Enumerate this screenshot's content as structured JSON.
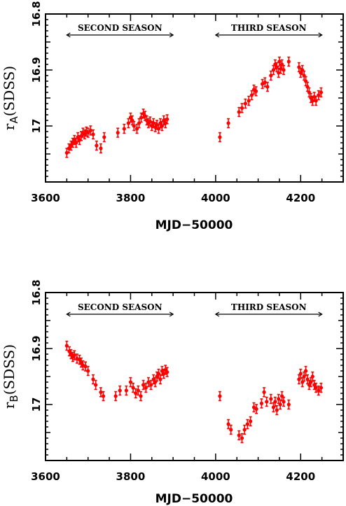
{
  "chart_data": [
    {
      "type": "scatter",
      "ylabel_main": "r",
      "ylabel_sub": "A",
      "ylabel_rest": "(SDSS)",
      "xlabel": "MJD−50000",
      "xlim": [
        3600,
        4300
      ],
      "ylim": [
        17.1,
        16.8
      ],
      "xticks": [
        "3600",
        "3800",
        "4000",
        "4200"
      ],
      "xtick_values": [
        3600,
        3800,
        4000,
        4200
      ],
      "yticks": [
        "16.8",
        "16.9",
        "17"
      ],
      "ytick_values": [
        16.8,
        16.9,
        17.0
      ],
      "annotations": [
        {
          "text": "SECOND SEASON",
          "x_start": 3650,
          "x_end": 3900
        },
        {
          "text": "THIRD SEASON",
          "x_start": 4000,
          "x_end": 4250
        }
      ],
      "color": "#ff0000",
      "points": [
        {
          "x": 3650,
          "y": 17.048,
          "e": 0.008
        },
        {
          "x": 3655,
          "y": 17.04,
          "e": 0.008
        },
        {
          "x": 3660,
          "y": 17.035,
          "e": 0.008
        },
        {
          "x": 3664,
          "y": 17.03,
          "e": 0.008
        },
        {
          "x": 3668,
          "y": 17.025,
          "e": 0.008
        },
        {
          "x": 3672,
          "y": 17.03,
          "e": 0.008
        },
        {
          "x": 3676,
          "y": 17.02,
          "e": 0.008
        },
        {
          "x": 3680,
          "y": 17.025,
          "e": 0.008
        },
        {
          "x": 3684,
          "y": 17.018,
          "e": 0.008
        },
        {
          "x": 3688,
          "y": 17.012,
          "e": 0.008
        },
        {
          "x": 3692,
          "y": 17.015,
          "e": 0.008
        },
        {
          "x": 3696,
          "y": 17.01,
          "e": 0.008
        },
        {
          "x": 3700,
          "y": 17.012,
          "e": 0.008
        },
        {
          "x": 3706,
          "y": 17.008,
          "e": 0.008
        },
        {
          "x": 3712,
          "y": 17.015,
          "e": 0.008
        },
        {
          "x": 3720,
          "y": 17.035,
          "e": 0.008
        },
        {
          "x": 3730,
          "y": 17.04,
          "e": 0.008
        },
        {
          "x": 3738,
          "y": 17.02,
          "e": 0.008
        },
        {
          "x": 3770,
          "y": 17.012,
          "e": 0.008
        },
        {
          "x": 3785,
          "y": 17.005,
          "e": 0.008
        },
        {
          "x": 3795,
          "y": 16.995,
          "e": 0.008
        },
        {
          "x": 3800,
          "y": 16.985,
          "e": 0.008
        },
        {
          "x": 3804,
          "y": 16.99,
          "e": 0.008
        },
        {
          "x": 3808,
          "y": 17.0,
          "e": 0.008
        },
        {
          "x": 3815,
          "y": 17.005,
          "e": 0.008
        },
        {
          "x": 3820,
          "y": 16.995,
          "e": 0.008
        },
        {
          "x": 3825,
          "y": 16.985,
          "e": 0.008
        },
        {
          "x": 3830,
          "y": 16.978,
          "e": 0.008
        },
        {
          "x": 3834,
          "y": 16.982,
          "e": 0.008
        },
        {
          "x": 3838,
          "y": 16.99,
          "e": 0.008
        },
        {
          "x": 3842,
          "y": 16.995,
          "e": 0.008
        },
        {
          "x": 3846,
          "y": 16.992,
          "e": 0.008
        },
        {
          "x": 3850,
          "y": 17.0,
          "e": 0.008
        },
        {
          "x": 3854,
          "y": 16.995,
          "e": 0.008
        },
        {
          "x": 3858,
          "y": 17.002,
          "e": 0.008
        },
        {
          "x": 3862,
          "y": 16.998,
          "e": 0.008
        },
        {
          "x": 3866,
          "y": 17.005,
          "e": 0.008
        },
        {
          "x": 3870,
          "y": 16.995,
          "e": 0.008
        },
        {
          "x": 3874,
          "y": 17.0,
          "e": 0.008
        },
        {
          "x": 3878,
          "y": 16.99,
          "e": 0.008
        },
        {
          "x": 3882,
          "y": 16.995,
          "e": 0.008
        },
        {
          "x": 3886,
          "y": 16.988,
          "e": 0.008
        },
        {
          "x": 4010,
          "y": 17.02,
          "e": 0.008
        },
        {
          "x": 4030,
          "y": 16.995,
          "e": 0.008
        },
        {
          "x": 4055,
          "y": 16.975,
          "e": 0.008
        },
        {
          "x": 4062,
          "y": 16.968,
          "e": 0.008
        },
        {
          "x": 4070,
          "y": 16.96,
          "e": 0.008
        },
        {
          "x": 4078,
          "y": 16.955,
          "e": 0.008
        },
        {
          "x": 4085,
          "y": 16.945,
          "e": 0.008
        },
        {
          "x": 4090,
          "y": 16.935,
          "e": 0.008
        },
        {
          "x": 4095,
          "y": 16.938,
          "e": 0.008
        },
        {
          "x": 4110,
          "y": 16.925,
          "e": 0.008
        },
        {
          "x": 4116,
          "y": 16.922,
          "e": 0.008
        },
        {
          "x": 4122,
          "y": 16.93,
          "e": 0.008
        },
        {
          "x": 4130,
          "y": 16.91,
          "e": 0.008
        },
        {
          "x": 4136,
          "y": 16.9,
          "e": 0.008
        },
        {
          "x": 4140,
          "y": 16.89,
          "e": 0.008
        },
        {
          "x": 4144,
          "y": 16.895,
          "e": 0.008
        },
        {
          "x": 4148,
          "y": 16.905,
          "e": 0.008
        },
        {
          "x": 4150,
          "y": 16.885,
          "e": 0.008
        },
        {
          "x": 4153,
          "y": 16.898,
          "e": 0.008
        },
        {
          "x": 4156,
          "y": 16.89,
          "e": 0.008
        },
        {
          "x": 4160,
          "y": 16.9,
          "e": 0.008
        },
        {
          "x": 4172,
          "y": 16.885,
          "e": 0.008
        },
        {
          "x": 4196,
          "y": 16.895,
          "e": 0.008
        },
        {
          "x": 4200,
          "y": 16.905,
          "e": 0.008
        },
        {
          "x": 4204,
          "y": 16.9,
          "e": 0.008
        },
        {
          "x": 4208,
          "y": 16.91,
          "e": 0.008
        },
        {
          "x": 4212,
          "y": 16.92,
          "e": 0.008
        },
        {
          "x": 4216,
          "y": 16.93,
          "e": 0.008
        },
        {
          "x": 4220,
          "y": 16.94,
          "e": 0.008
        },
        {
          "x": 4224,
          "y": 16.95,
          "e": 0.008
        },
        {
          "x": 4228,
          "y": 16.955,
          "e": 0.008
        },
        {
          "x": 4232,
          "y": 16.948,
          "e": 0.008
        },
        {
          "x": 4236,
          "y": 16.955,
          "e": 0.008
        },
        {
          "x": 4242,
          "y": 16.945,
          "e": 0.008
        },
        {
          "x": 4248,
          "y": 16.94,
          "e": 0.008
        }
      ]
    },
    {
      "type": "scatter",
      "ylabel_main": "r",
      "ylabel_sub": "B",
      "ylabel_rest": "(SDSS)",
      "xlabel": "MJD−50000",
      "xlim": [
        3600,
        4300
      ],
      "ylim": [
        17.1,
        16.8
      ],
      "xticks": [
        "3600",
        "3800",
        "4000",
        "4200"
      ],
      "xtick_values": [
        3600,
        3800,
        4000,
        4200
      ],
      "yticks": [
        "16.8",
        "16.9",
        "17"
      ],
      "ytick_values": [
        16.8,
        16.9,
        17.0
      ],
      "annotations": [
        {
          "text": "SECOND SEASON",
          "x_start": 3650,
          "x_end": 3900
        },
        {
          "text": "THIRD SEASON",
          "x_start": 4000,
          "x_end": 4250
        }
      ],
      "color": "#ff0000",
      "points": [
        {
          "x": 3650,
          "y": 16.895,
          "e": 0.008
        },
        {
          "x": 3656,
          "y": 16.905,
          "e": 0.008
        },
        {
          "x": 3660,
          "y": 16.91,
          "e": 0.008
        },
        {
          "x": 3664,
          "y": 16.915,
          "e": 0.008
        },
        {
          "x": 3668,
          "y": 16.912,
          "e": 0.008
        },
        {
          "x": 3674,
          "y": 16.918,
          "e": 0.008
        },
        {
          "x": 3680,
          "y": 16.92,
          "e": 0.008
        },
        {
          "x": 3684,
          "y": 16.925,
          "e": 0.008
        },
        {
          "x": 3688,
          "y": 16.93,
          "e": 0.008
        },
        {
          "x": 3694,
          "y": 16.932,
          "e": 0.008
        },
        {
          "x": 3700,
          "y": 16.94,
          "e": 0.008
        },
        {
          "x": 3712,
          "y": 16.955,
          "e": 0.008
        },
        {
          "x": 3718,
          "y": 16.965,
          "e": 0.008
        },
        {
          "x": 3730,
          "y": 16.978,
          "e": 0.008
        },
        {
          "x": 3736,
          "y": 16.985,
          "e": 0.008
        },
        {
          "x": 3765,
          "y": 16.985,
          "e": 0.008
        },
        {
          "x": 3775,
          "y": 16.975,
          "e": 0.008
        },
        {
          "x": 3790,
          "y": 16.975,
          "e": 0.008
        },
        {
          "x": 3800,
          "y": 16.96,
          "e": 0.008
        },
        {
          "x": 3806,
          "y": 16.97,
          "e": 0.008
        },
        {
          "x": 3812,
          "y": 16.98,
          "e": 0.008
        },
        {
          "x": 3818,
          "y": 16.975,
          "e": 0.008
        },
        {
          "x": 3824,
          "y": 16.985,
          "e": 0.008
        },
        {
          "x": 3830,
          "y": 16.965,
          "e": 0.008
        },
        {
          "x": 3836,
          "y": 16.97,
          "e": 0.008
        },
        {
          "x": 3842,
          "y": 16.96,
          "e": 0.008
        },
        {
          "x": 3848,
          "y": 16.965,
          "e": 0.008
        },
        {
          "x": 3854,
          "y": 16.955,
          "e": 0.008
        },
        {
          "x": 3858,
          "y": 16.96,
          "e": 0.008
        },
        {
          "x": 3862,
          "y": 16.95,
          "e": 0.008
        },
        {
          "x": 3866,
          "y": 16.945,
          "e": 0.008
        },
        {
          "x": 3870,
          "y": 16.955,
          "e": 0.008
        },
        {
          "x": 3874,
          "y": 16.94,
          "e": 0.008
        },
        {
          "x": 3878,
          "y": 16.945,
          "e": 0.008
        },
        {
          "x": 3882,
          "y": 16.938,
          "e": 0.008
        },
        {
          "x": 3886,
          "y": 16.942,
          "e": 0.008
        },
        {
          "x": 4010,
          "y": 16.985,
          "e": 0.008
        },
        {
          "x": 4030,
          "y": 17.035,
          "e": 0.008
        },
        {
          "x": 4036,
          "y": 17.045,
          "e": 0.008
        },
        {
          "x": 4055,
          "y": 17.055,
          "e": 0.008
        },
        {
          "x": 4062,
          "y": 17.06,
          "e": 0.008
        },
        {
          "x": 4068,
          "y": 17.045,
          "e": 0.008
        },
        {
          "x": 4075,
          "y": 17.035,
          "e": 0.008
        },
        {
          "x": 4082,
          "y": 17.03,
          "e": 0.008
        },
        {
          "x": 4090,
          "y": 17.005,
          "e": 0.008
        },
        {
          "x": 4096,
          "y": 17.008,
          "e": 0.008
        },
        {
          "x": 4108,
          "y": 16.998,
          "e": 0.008
        },
        {
          "x": 4114,
          "y": 16.978,
          "e": 0.008
        },
        {
          "x": 4120,
          "y": 16.995,
          "e": 0.008
        },
        {
          "x": 4130,
          "y": 16.99,
          "e": 0.008
        },
        {
          "x": 4136,
          "y": 17.005,
          "e": 0.008
        },
        {
          "x": 4140,
          "y": 16.995,
          "e": 0.008
        },
        {
          "x": 4144,
          "y": 17.01,
          "e": 0.008
        },
        {
          "x": 4148,
          "y": 16.99,
          "e": 0.008
        },
        {
          "x": 4152,
          "y": 17.0,
          "e": 0.008
        },
        {
          "x": 4156,
          "y": 16.985,
          "e": 0.008
        },
        {
          "x": 4160,
          "y": 16.995,
          "e": 0.008
        },
        {
          "x": 4172,
          "y": 17.0,
          "e": 0.008
        },
        {
          "x": 4196,
          "y": 16.955,
          "e": 0.008
        },
        {
          "x": 4200,
          "y": 16.945,
          "e": 0.008
        },
        {
          "x": 4204,
          "y": 16.96,
          "e": 0.008
        },
        {
          "x": 4208,
          "y": 16.95,
          "e": 0.008
        },
        {
          "x": 4212,
          "y": 16.94,
          "e": 0.008
        },
        {
          "x": 4216,
          "y": 16.955,
          "e": 0.008
        },
        {
          "x": 4220,
          "y": 16.965,
          "e": 0.008
        },
        {
          "x": 4224,
          "y": 16.96,
          "e": 0.008
        },
        {
          "x": 4228,
          "y": 16.95,
          "e": 0.008
        },
        {
          "x": 4232,
          "y": 16.965,
          "e": 0.008
        },
        {
          "x": 4236,
          "y": 16.97,
          "e": 0.008
        },
        {
          "x": 4242,
          "y": 16.975,
          "e": 0.008
        },
        {
          "x": 4248,
          "y": 16.97,
          "e": 0.008
        }
      ]
    }
  ]
}
